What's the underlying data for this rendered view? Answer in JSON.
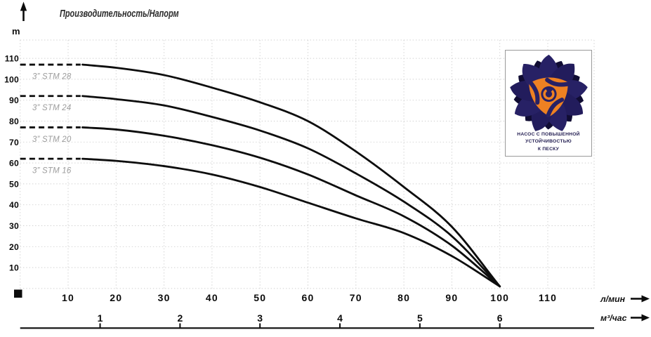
{
  "chart_data": {
    "type": "line",
    "title": "Производительность/Напорм",
    "ylabel": "m",
    "ylim": [
      0,
      118
    ],
    "y_ticks": [
      10,
      20,
      30,
      40,
      50,
      60,
      70,
      80,
      90,
      100,
      110
    ],
    "x_primary": {
      "label": "л/мин",
      "ticks": [
        10,
        20,
        30,
        40,
        50,
        60,
        70,
        80,
        90,
        100,
        110
      ],
      "lim": [
        0,
        119.5
      ]
    },
    "x_secondary": {
      "label": "м³/час",
      "ticks": [
        1,
        2,
        3,
        4,
        5,
        6
      ],
      "liters_per_unit": 16.6667
    },
    "grid": true,
    "series": [
      {
        "name": "3” STM 28",
        "shutoff_head_m": 107,
        "dash_q_range": [
          0,
          12.6
        ],
        "points": [
          [
            13,
            107
          ],
          [
            20,
            105.5
          ],
          [
            30,
            102
          ],
          [
            40,
            96
          ],
          [
            50,
            89
          ],
          [
            60,
            80
          ],
          [
            70,
            65.5
          ],
          [
            80,
            48.5
          ],
          [
            90,
            29.5
          ],
          [
            100,
            1
          ]
        ]
      },
      {
        "name": "3” STM 24",
        "shutoff_head_m": 92,
        "dash_q_range": [
          0,
          12.6
        ],
        "points": [
          [
            13,
            92
          ],
          [
            20,
            90.5
          ],
          [
            30,
            87.5
          ],
          [
            40,
            82
          ],
          [
            50,
            75.5
          ],
          [
            60,
            67
          ],
          [
            70,
            55
          ],
          [
            80,
            41.5
          ],
          [
            90,
            25
          ],
          [
            100,
            1
          ]
        ]
      },
      {
        "name": "3” STM 20",
        "shutoff_head_m": 77,
        "dash_q_range": [
          0,
          12.6
        ],
        "points": [
          [
            13,
            77
          ],
          [
            20,
            76
          ],
          [
            30,
            73
          ],
          [
            40,
            68.5
          ],
          [
            50,
            62.5
          ],
          [
            60,
            54.5
          ],
          [
            70,
            44.5
          ],
          [
            80,
            34.5
          ],
          [
            90,
            20.5
          ],
          [
            100,
            1
          ]
        ]
      },
      {
        "name": "3” STM 16",
        "shutoff_head_m": 62,
        "dash_q_range": [
          0,
          12.6
        ],
        "points": [
          [
            13,
            62
          ],
          [
            20,
            61
          ],
          [
            30,
            58.5
          ],
          [
            40,
            54.5
          ],
          [
            50,
            48.5
          ],
          [
            60,
            41
          ],
          [
            70,
            33.5
          ],
          [
            80,
            26.5
          ],
          [
            90,
            15.5
          ],
          [
            100,
            1
          ]
        ]
      }
    ]
  },
  "badge": {
    "lines": [
      "НАСОС С ПОВЫШЕННОЙ",
      "УСТОЙЧИВОСТЬЮ",
      "К ПЕСКУ"
    ]
  },
  "colors": {
    "curve": "#0d0d0d",
    "grid": "#cfcfcf",
    "series_label": "#9c9c9c",
    "logo_navy": "#272165",
    "logo_navy_dark": "#100c33",
    "logo_orange": "#ee8122",
    "badge_text": "#211c50"
  }
}
